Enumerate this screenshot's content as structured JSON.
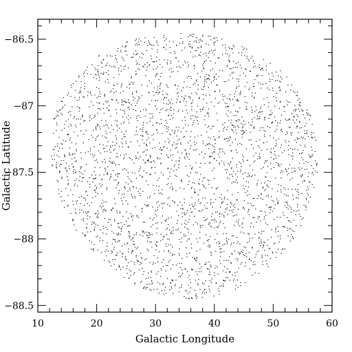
{
  "chart_data": {
    "type": "scatter",
    "title": "",
    "xlabel": "Galactic Longitude",
    "ylabel": "Galactic Latitude",
    "xlim": [
      10,
      60
    ],
    "ylim": [
      -88.55,
      -86.35
    ],
    "x_ticks": [
      10,
      20,
      30,
      40,
      50,
      60
    ],
    "x_tick_labels": [
      "10",
      "20",
      "30",
      "40",
      "50",
      "60"
    ],
    "y_ticks": [
      -86.5,
      -87,
      -87.5,
      -88,
      -88.5
    ],
    "y_tick_labels": [
      "−86.5",
      "−87",
      "−87.5",
      "−88",
      "−88.5"
    ],
    "grid": false,
    "legend": "none",
    "point_color": "#000000",
    "axis_color": "#000000",
    "region": {
      "shape": "rounded field, wider at top-right",
      "x_range": [
        12.3,
        57.5
      ],
      "y_range": [
        -88.45,
        -86.45
      ],
      "approx_point_count": 3000
    }
  }
}
